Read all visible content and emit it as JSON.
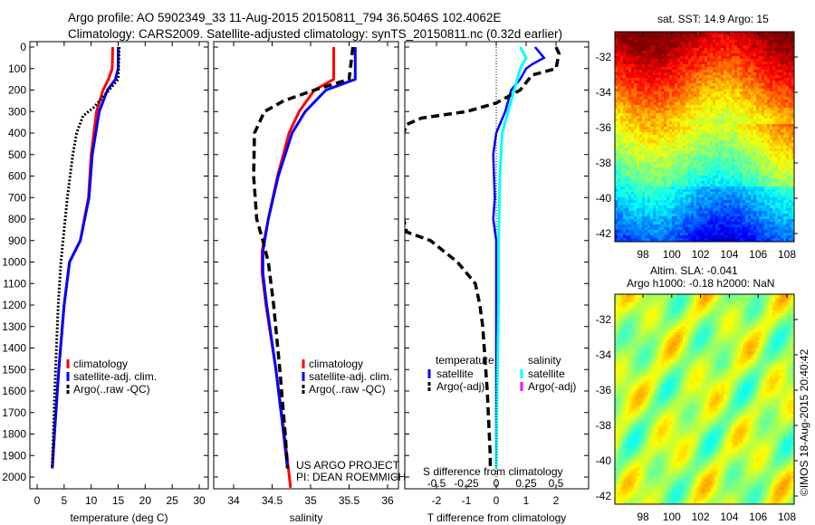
{
  "title_line1": "Argo profile: AO 5902349_33 11-Aug-2015 20150811_794 36.5046S 102.4062E",
  "title_line2": "Climatology: CARS2009. Satellite-adjusted climatology: synTS_20150811.nc (0.32d earlier)",
  "credit": "US ARGO PROJECT",
  "pi": "PI: DEAN ROEMMICH",
  "side_stamp": "©IMOS 18-Aug-2015 20:40:42",
  "colors": {
    "climatology": "#ff0000",
    "satellite": "#0000ff",
    "argo": "#000000",
    "sal_satellite": "#00ffff",
    "sal_argo": "#ff00ff"
  },
  "chart_data": [
    {
      "type": "line",
      "xlabel": "temperature (deg C)",
      "ylabel": "",
      "xlim": [
        -2,
        32
      ],
      "ylim": [
        2050,
        0
      ],
      "xticks": [
        "0",
        "5",
        "10",
        "15",
        "20",
        "25",
        "30"
      ],
      "xtick_values": [
        0,
        5,
        10,
        15,
        20,
        25,
        30
      ],
      "yticks": [
        "0",
        "100",
        "200",
        "300",
        "400",
        "500",
        "600",
        "700",
        "800",
        "900",
        "1000",
        "1100",
        "1200",
        "1300",
        "1400",
        "1500",
        "1600",
        "1700",
        "1800",
        "1900",
        "2000"
      ],
      "legend": [
        "climatology",
        "satellite-adj. clim.",
        "Argo(..raw -QC)"
      ],
      "series": [
        {
          "name": "climatology",
          "depth": [
            0,
            100,
            150,
            200,
            300,
            500,
            700,
            900,
            1000,
            1200,
            1500,
            1800,
            1960
          ],
          "values": [
            14,
            13.9,
            13.2,
            12.2,
            11,
            10,
            9.5,
            8,
            6,
            5,
            4,
            3.2,
            2.8
          ]
        },
        {
          "name": "satellite-adj. clim.",
          "depth": [
            0,
            100,
            150,
            200,
            300,
            500,
            700,
            900,
            1000,
            1200,
            1500,
            1800,
            1960
          ],
          "values": [
            15,
            15,
            14.5,
            13,
            11.5,
            10.2,
            9.6,
            8,
            6,
            5,
            4,
            3.2,
            2.8
          ]
        },
        {
          "name": "Argo(..raw -QC)",
          "depth": [
            0,
            150,
            200,
            280,
            320,
            400,
            500,
            700,
            900,
            1000,
            1200,
            1500,
            1800,
            1960
          ],
          "values": [
            15.2,
            15,
            13.3,
            10.5,
            8.5,
            7.3,
            6.6,
            5.6,
            4.8,
            4.4,
            3.9,
            3.4,
            3.0,
            2.8
          ]
        }
      ]
    },
    {
      "type": "line",
      "xlabel": "salinity",
      "xlim": [
        33.85,
        36.05
      ],
      "ylim": [
        2050,
        0
      ],
      "xticks": [
        "34",
        "34.5",
        "35",
        "35.5",
        "36"
      ],
      "xtick_values": [
        34,
        34.5,
        35,
        35.5,
        36
      ],
      "legend": [
        "climatology",
        "satellite-adj. clim.",
        "Argo(..raw -QC)"
      ],
      "series": [
        {
          "name": "climatology",
          "depth": [
            0,
            150,
            200,
            300,
            400,
            600,
            800,
            950,
            1050,
            1200,
            1500,
            1800,
            2050
          ],
          "values": [
            35.3,
            35.3,
            35.05,
            34.85,
            34.72,
            34.57,
            34.45,
            34.37,
            34.37,
            34.42,
            34.55,
            34.66,
            34.74
          ]
        },
        {
          "name": "satellite-adj. clim.",
          "depth": [
            0,
            150,
            200,
            300,
            400,
            600,
            800,
            950,
            1050,
            1200,
            1500,
            1800,
            1960
          ],
          "values": [
            35.58,
            35.58,
            35.2,
            34.93,
            34.76,
            34.58,
            34.45,
            34.38,
            34.38,
            34.43,
            34.55,
            34.65,
            34.7
          ]
        },
        {
          "name": "Argo(..raw -QC)",
          "depth": [
            0,
            150,
            200,
            250,
            300,
            400,
            600,
            800,
            900,
            1000,
            1200,
            1500,
            1800,
            1960
          ],
          "values": [
            35.55,
            35.5,
            35.05,
            34.65,
            34.4,
            34.27,
            34.26,
            34.3,
            34.38,
            34.45,
            34.52,
            34.6,
            34.67,
            34.7
          ]
        }
      ]
    },
    {
      "type": "line",
      "xlabel": "T difference from climatology",
      "xlabel2": "S difference from climatology",
      "xlim": [
        -3.1,
        3.1
      ],
      "ylim": [
        2050,
        0
      ],
      "xticks": [
        "-2",
        "-1",
        "0",
        "1",
        "2"
      ],
      "xtick_values": [
        -2,
        -1,
        0,
        1,
        2
      ],
      "xticks2": [
        "-0.5",
        "-0.25",
        "0",
        "0.25",
        "0.5"
      ],
      "xtick2_values": [
        -0.5,
        -0.25,
        0,
        0.25,
        0.5
      ],
      "legend_temperature": {
        "title": "temperature",
        "items": [
          "satellite",
          "Argo(-adj)"
        ]
      },
      "legend_salinity": {
        "title": "salinity",
        "items": [
          "satellite",
          "Argo(-adj)"
        ]
      },
      "series": [
        {
          "name": "temperature satellite",
          "depth": [
            0,
            50,
            80,
            100,
            150,
            200,
            300,
            400,
            500,
            700,
            800,
            900,
            1200,
            1500,
            1960
          ],
          "values": [
            1.3,
            1.6,
            1.2,
            1.0,
            0.8,
            0.5,
            0.3,
            0,
            -0.1,
            -0.05,
            -0.1,
            0,
            0,
            0,
            0
          ]
        },
        {
          "name": "temperature Argo(-adj)",
          "depth": [
            0,
            30,
            100,
            130,
            200,
            260,
            300,
            330,
            360,
            400,
            800,
            860,
            900,
            1000,
            1100,
            1200,
            1300,
            1600,
            1900,
            1960
          ],
          "values": [
            2,
            2.1,
            2.0,
            1.2,
            0.8,
            0,
            -1,
            -2.5,
            -3,
            -3.1,
            -3.1,
            -3,
            -2.2,
            -1.3,
            -0.7,
            -0.55,
            -0.45,
            -0.3,
            -0.2,
            -0.2
          ]
        },
        {
          "name": "salinity satellite",
          "depth": [
            0,
            50,
            100,
            200,
            300,
            400,
            600,
            900,
            1200,
            1500,
            1960
          ],
          "values": [
            0.2,
            0.25,
            0.2,
            0.15,
            0.1,
            0.05,
            0.03,
            0.02,
            0.02,
            0.01,
            0.0
          ]
        }
      ]
    },
    {
      "type": "heatmap",
      "title": "sat. SST: 14.9 Argo: 15",
      "xticks": [
        "98",
        "100",
        "102",
        "104",
        "106",
        "108"
      ],
      "yticks": [
        "-32",
        "-34",
        "-36",
        "-38",
        "-40",
        "-42"
      ]
    },
    {
      "type": "heatmap",
      "title_line1": "Altim. SLA: -0.041",
      "title_line2": "Argo h1000: -0.18 h2000: NaN",
      "xticks": [
        "98",
        "100",
        "102",
        "104",
        "106",
        "108"
      ],
      "yticks": [
        "-32",
        "-34",
        "-36",
        "-38",
        "-40",
        "-42"
      ]
    }
  ]
}
